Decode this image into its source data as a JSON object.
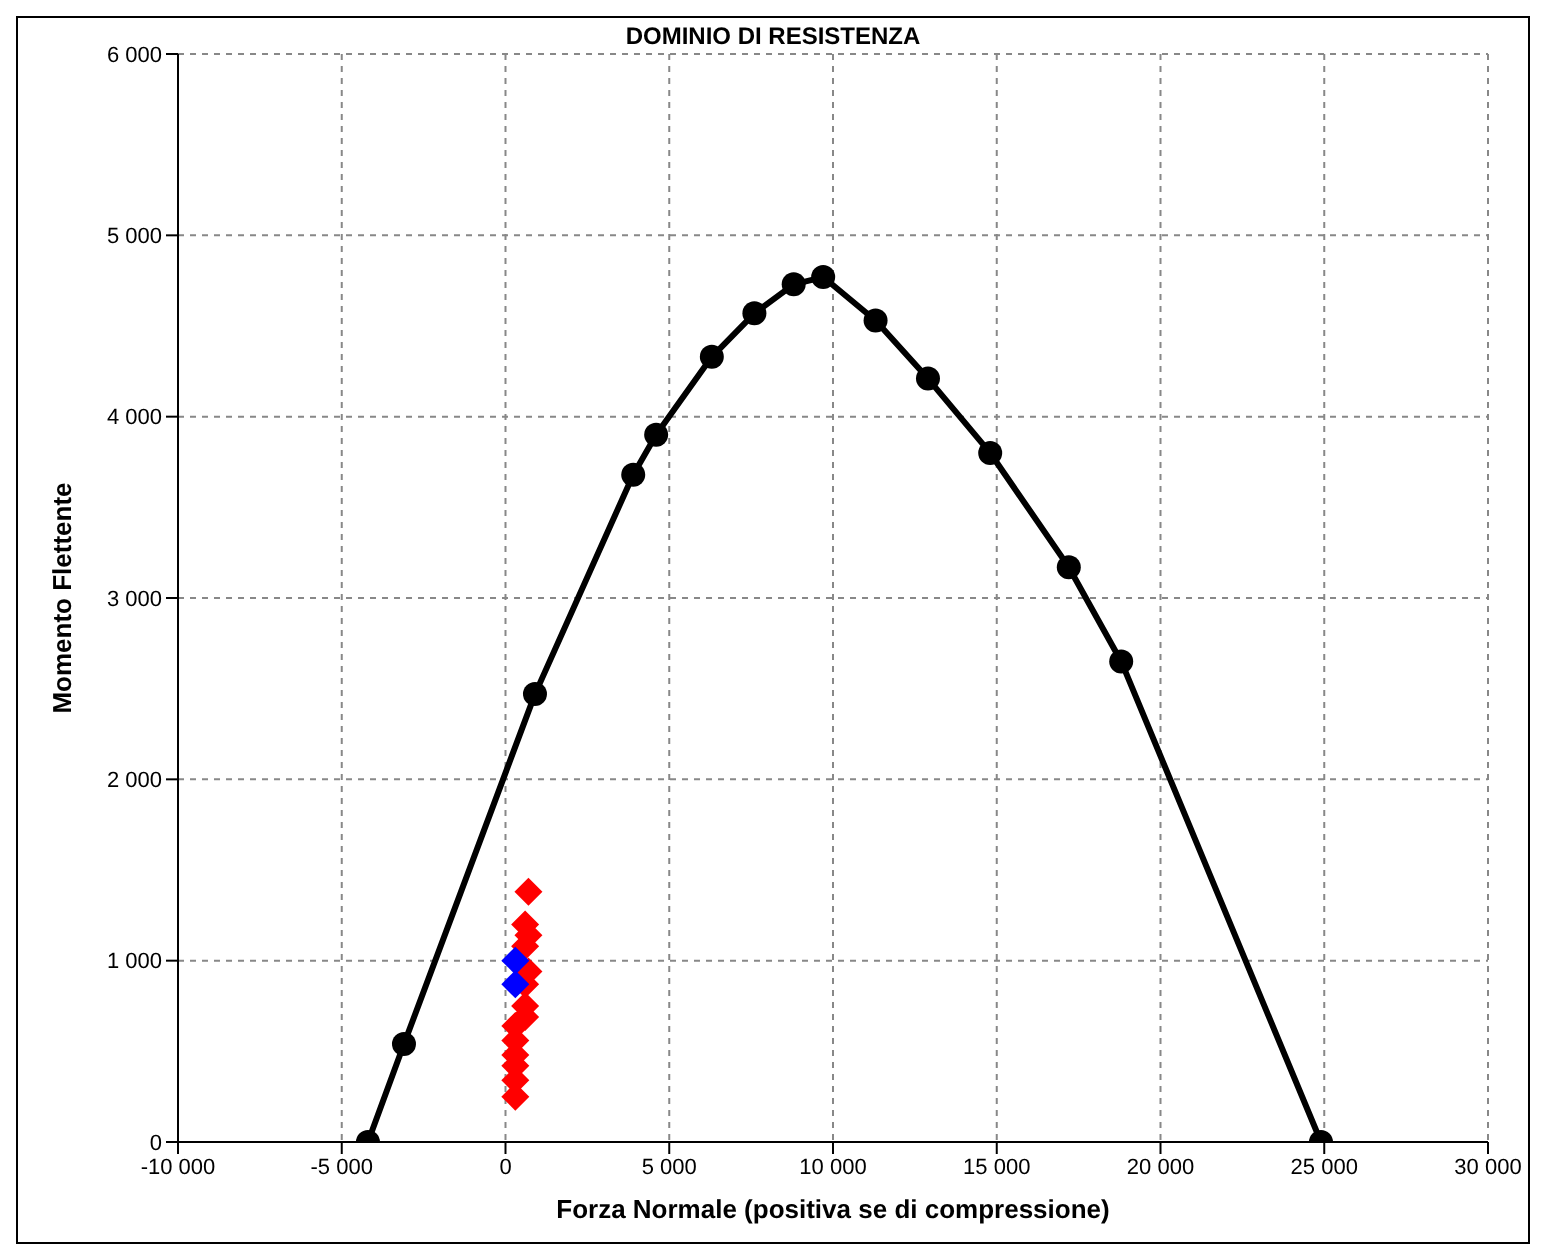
{
  "chart_data": {
    "type": "line",
    "title": "DOMINIO DI RESISTENZA",
    "xlabel": "Forza Normale (positiva se di compressione)",
    "ylabel": "Momento Flettente",
    "series": [
      {
        "color": "#000000",
        "marker": "circle",
        "line_style": "solid",
        "x": [
          -4200,
          -3100,
          900,
          3900,
          4600,
          6300,
          7600,
          8800,
          9700,
          11300,
          12900,
          14800,
          17200,
          18800,
          24900
        ],
        "values": [
          0,
          540,
          2470,
          3680,
          3900,
          4330,
          4570,
          4730,
          4770,
          4530,
          4210,
          3800,
          3170,
          2650,
          0
        ]
      },
      {
        "type": "scatter",
        "color": "#ff0000",
        "marker": "diamond",
        "x": [
          700,
          600,
          700,
          600,
          700,
          600,
          600,
          600,
          300,
          300,
          300,
          300,
          300,
          300
        ],
        "values": [
          1380,
          1200,
          1140,
          1080,
          940,
          870,
          750,
          690,
          640,
          560,
          480,
          420,
          340,
          250
        ]
      },
      {
        "type": "scatter",
        "color": "#0000ff",
        "marker": "diamond",
        "x": [
          300,
          300
        ],
        "values": [
          1000,
          870
        ]
      }
    ],
    "xlim": [
      -10000,
      30000
    ],
    "ylim": [
      0,
      6000
    ],
    "xticks": [
      {
        "value": -10000,
        "label": "-10 000"
      },
      {
        "value": -5000,
        "label": "-5 000"
      },
      0,
      {
        "value": 5000,
        "label": "5 000"
      },
      {
        "value": 10000,
        "label": "10 000"
      },
      {
        "value": 15000,
        "label": "15 000"
      },
      {
        "value": 20000,
        "label": "20 000"
      },
      {
        "value": 25000,
        "label": "25 000"
      },
      {
        "value": 30000,
        "label": "30 000"
      }
    ],
    "yticks": [
      0,
      {
        "value": 1000,
        "label": "1 000"
      },
      {
        "value": 2000,
        "label": "2 000"
      },
      {
        "value": 3000,
        "label": "3 000"
      },
      {
        "value": 4000,
        "label": "4 000"
      },
      {
        "value": 5000,
        "label": "5 000"
      },
      {
        "value": 6000,
        "label": "6 000"
      }
    ],
    "grid": true
  }
}
